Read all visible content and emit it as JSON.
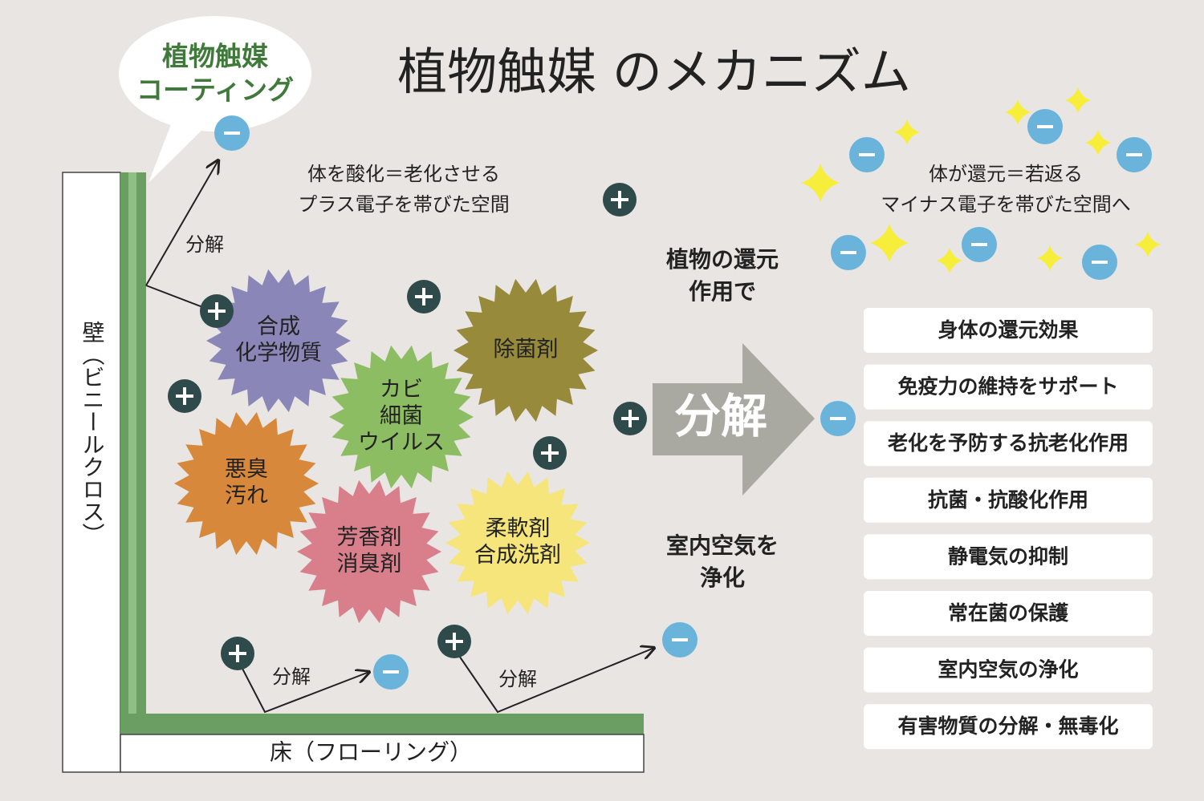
{
  "title": "植物触媒 のメカニズム",
  "coating_bubble": {
    "lines": [
      "植物触媒",
      "コーティング"
    ]
  },
  "wall": "壁（ビニールクロス）",
  "floor": "床（フローリング）",
  "oxidized_space": {
    "lines": [
      "体を酸化＝老化させる",
      "プラス電子を帯びた空間"
    ]
  },
  "reduced_space": {
    "lines": [
      "体が還元＝若返る",
      "マイナス電子を帯びた空間へ"
    ]
  },
  "decompose_labels": [
    "分解",
    "分解",
    "分解"
  ],
  "big_arrow": "分解",
  "plant_reduction": {
    "lines": [
      "植物の還元",
      "作用で"
    ]
  },
  "air_purification": {
    "lines": [
      "室内空気を",
      "浄化"
    ]
  },
  "pollutants": [
    {
      "lines": [
        "合成",
        "化学物質"
      ]
    },
    {
      "lines": [
        "除菌剤"
      ]
    },
    {
      "lines": [
        "カビ",
        "細菌",
        "ウイルス"
      ]
    },
    {
      "lines": [
        "悪臭",
        "汚れ"
      ]
    },
    {
      "lines": [
        "芳香剤",
        "消臭剤"
      ]
    },
    {
      "lines": [
        "柔軟剤",
        "合成洗剤"
      ]
    }
  ],
  "benefits": [
    "身体の還元効果",
    "免疫力の維持をサポート",
    "老化を予防する抗老化作用",
    "抗菌・抗酸化作用",
    "静電気の抑制",
    "常在菌の保護",
    "室内空気の浄化",
    "有害物質の分解・無毒化"
  ]
}
